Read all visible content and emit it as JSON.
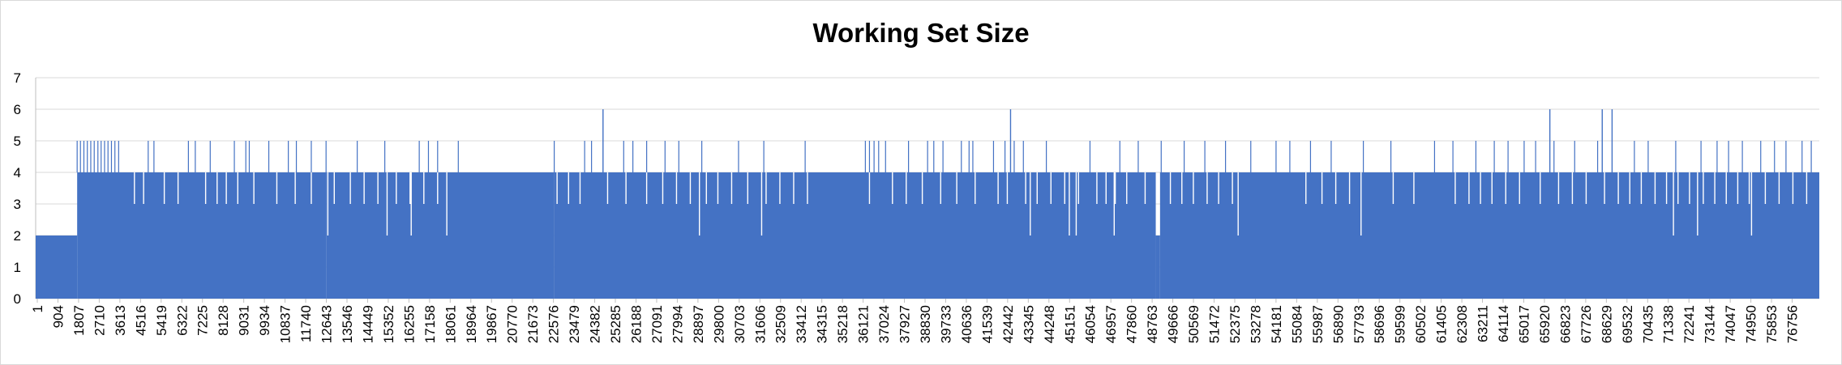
{
  "chart_data": {
    "type": "area",
    "title": "Working Set Size",
    "xlabel": "",
    "ylabel": "",
    "ylim": [
      0,
      7
    ],
    "yticks": [
      0,
      1,
      2,
      3,
      4,
      5,
      6,
      7
    ],
    "grid": true,
    "legend": "none",
    "color": "#4472C4",
    "x_tick_labels": [
      "1",
      "904",
      "1807",
      "2710",
      "3613",
      "4516",
      "5419",
      "6322",
      "7225",
      "8128",
      "9031",
      "9934",
      "10837",
      "11740",
      "12643",
      "13546",
      "14449",
      "15352",
      "16255",
      "17158",
      "18061",
      "18964",
      "19867",
      "20770",
      "21673",
      "22576",
      "23479",
      "24382",
      "25285",
      "26188",
      "27091",
      "27994",
      "28897",
      "29800",
      "30703",
      "31606",
      "32509",
      "33412",
      "34315",
      "35218",
      "36121",
      "37024",
      "37927",
      "38830",
      "39733",
      "40636",
      "41539",
      "42442",
      "43345",
      "44248",
      "45151",
      "46054",
      "46957",
      "47860",
      "48763",
      "49666",
      "50569",
      "51472",
      "52375",
      "53278",
      "54181",
      "55084",
      "55987",
      "56890",
      "57793",
      "58696",
      "59599",
      "60502",
      "61405",
      "62308",
      "63211",
      "64114",
      "65017",
      "65920",
      "66823",
      "67726",
      "68629",
      "69532",
      "70435",
      "71338",
      "72241",
      "73144",
      "74047",
      "74950",
      "75853",
      "76756"
    ],
    "x_range": [
      1,
      77650
    ],
    "series": [
      {
        "name": "",
        "segments": [
          {
            "x": [
              1,
              1807
            ],
            "y": 2
          },
          {
            "x": [
              1807,
              12643
            ],
            "y": 4
          },
          {
            "x": [
              12643,
              22576
            ],
            "y": 4
          },
          {
            "x": [
              22576,
              48763
            ],
            "y": 4
          },
          {
            "x": [
              48763,
              48950
            ],
            "y": 2
          },
          {
            "x": [
              48950,
              77650
            ],
            "y": 4
          }
        ],
        "peaks_y6_x": [
          24700,
          42442,
          65920,
          68200,
          68629
        ],
        "spikes_to_5_x": [
          1807,
          1950,
          2100,
          2250,
          2400,
          2550,
          2710,
          2850,
          3000,
          3150,
          3300,
          3450,
          3613,
          4900,
          5150,
          6650,
          6950,
          7600,
          8650,
          9150,
          9300,
          10150,
          11000,
          11350,
          12000,
          12643,
          14000,
          15200,
          16700,
          17100,
          17500,
          18400,
          22576,
          23900,
          24200,
          25600,
          26000,
          26600,
          27400,
          28000,
          29000,
          30600,
          31700,
          33500,
          36121,
          36300,
          36500,
          36700,
          37000,
          38000,
          38830,
          39100,
          39500,
          40300,
          40636,
          40800,
          41700,
          42200,
          42600,
          43000,
          44000,
          45900,
          47200,
          48000,
          49000,
          50000,
          50900,
          51800,
          52900,
          54000,
          54600,
          55500,
          56400,
          57800,
          59000,
          60900,
          61700,
          62700,
          63500,
          64100,
          64800,
          65300,
          66100,
          67000,
          68000,
          69600,
          70200,
          71400,
          72500,
          73200,
          73700,
          74300,
          75100,
          75700,
          76200,
          76900,
          77300
        ],
        "dips_to_3_x": [
          4300,
          4700,
          5600,
          6200,
          7400,
          7900,
          8300,
          8800,
          9500,
          10500,
          11300,
          12000,
          13000,
          13700,
          14300,
          14900,
          15700,
          16300,
          16900,
          17500,
          22700,
          23200,
          23700,
          24900,
          25700,
          26600,
          27300,
          27900,
          28500,
          29200,
          29700,
          30300,
          31000,
          31800,
          32400,
          33000,
          33600,
          36300,
          37300,
          37900,
          38600,
          39400,
          40100,
          40900,
          41900,
          42300,
          43100,
          43600,
          44200,
          44800,
          45400,
          46200,
          46600,
          47000,
          47500,
          48300,
          49400,
          49900,
          50400,
          51000,
          51500,
          52100,
          55300,
          56000,
          56600,
          57200,
          59100,
          60000,
          61800,
          62400,
          62900,
          63400,
          64000,
          64600,
          65500,
          66300,
          66900,
          67500,
          68300,
          68900,
          69400,
          69900,
          70500,
          71000,
          71500,
          72000,
          72600,
          73100,
          73600,
          74100,
          74600,
          75300,
          75900,
          76500,
          77100
        ],
        "dips_to_2_x": [
          12720,
          15300,
          16350,
          17900,
          28897,
          31606,
          43300,
          45000,
          45300,
          46954,
          52350,
          57700,
          71300,
          72350,
          74700
        ]
      }
    ]
  }
}
